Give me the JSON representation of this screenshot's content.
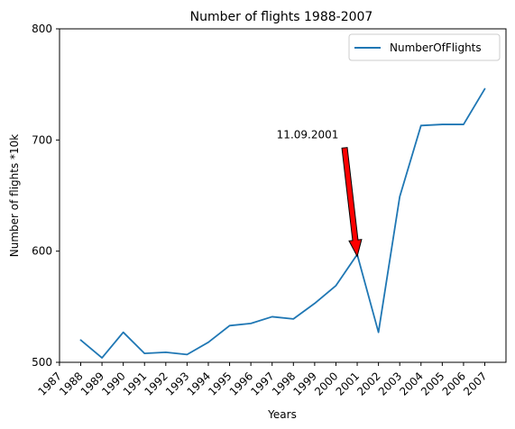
{
  "chart_data": {
    "type": "line",
    "title": "Number of flights 1988-2007",
    "xlabel": "Years",
    "ylabel": "Number of flights *10k",
    "x": [
      1988,
      1989,
      1990,
      1991,
      1992,
      1993,
      1994,
      1995,
      1996,
      1997,
      1998,
      1999,
      2000,
      2001,
      2002,
      2003,
      2004,
      2005,
      2006,
      2007
    ],
    "x_tick_labels": [
      "1987",
      "1988",
      "1989",
      "1990",
      "1991",
      "1992",
      "1993",
      "1994",
      "1995",
      "1996",
      "1997",
      "1998",
      "1999",
      "2000",
      "2001",
      "2002",
      "2003",
      "2004",
      "2005",
      "2006",
      "2007"
    ],
    "y_tick_labels": [
      "500",
      "600",
      "700",
      "800"
    ],
    "xlim": [
      1987,
      2007
    ],
    "ylim": [
      500,
      800
    ],
    "series": [
      {
        "name": "NumberOfFlights",
        "color": "#1f77b4",
        "values": [
          520,
          504,
          527,
          508,
          509,
          507,
          518,
          533,
          535,
          541,
          539,
          553,
          569,
          597,
          527,
          649,
          713,
          714,
          714,
          746
        ]
      }
    ],
    "legend": {
      "position": "top-right",
      "entries": [
        "NumberOfFlights"
      ]
    },
    "grid": false,
    "annotation": {
      "text": "11.09.2001",
      "target_x": 2001,
      "target_y": 597,
      "arrow_color": "#ff0000"
    }
  }
}
